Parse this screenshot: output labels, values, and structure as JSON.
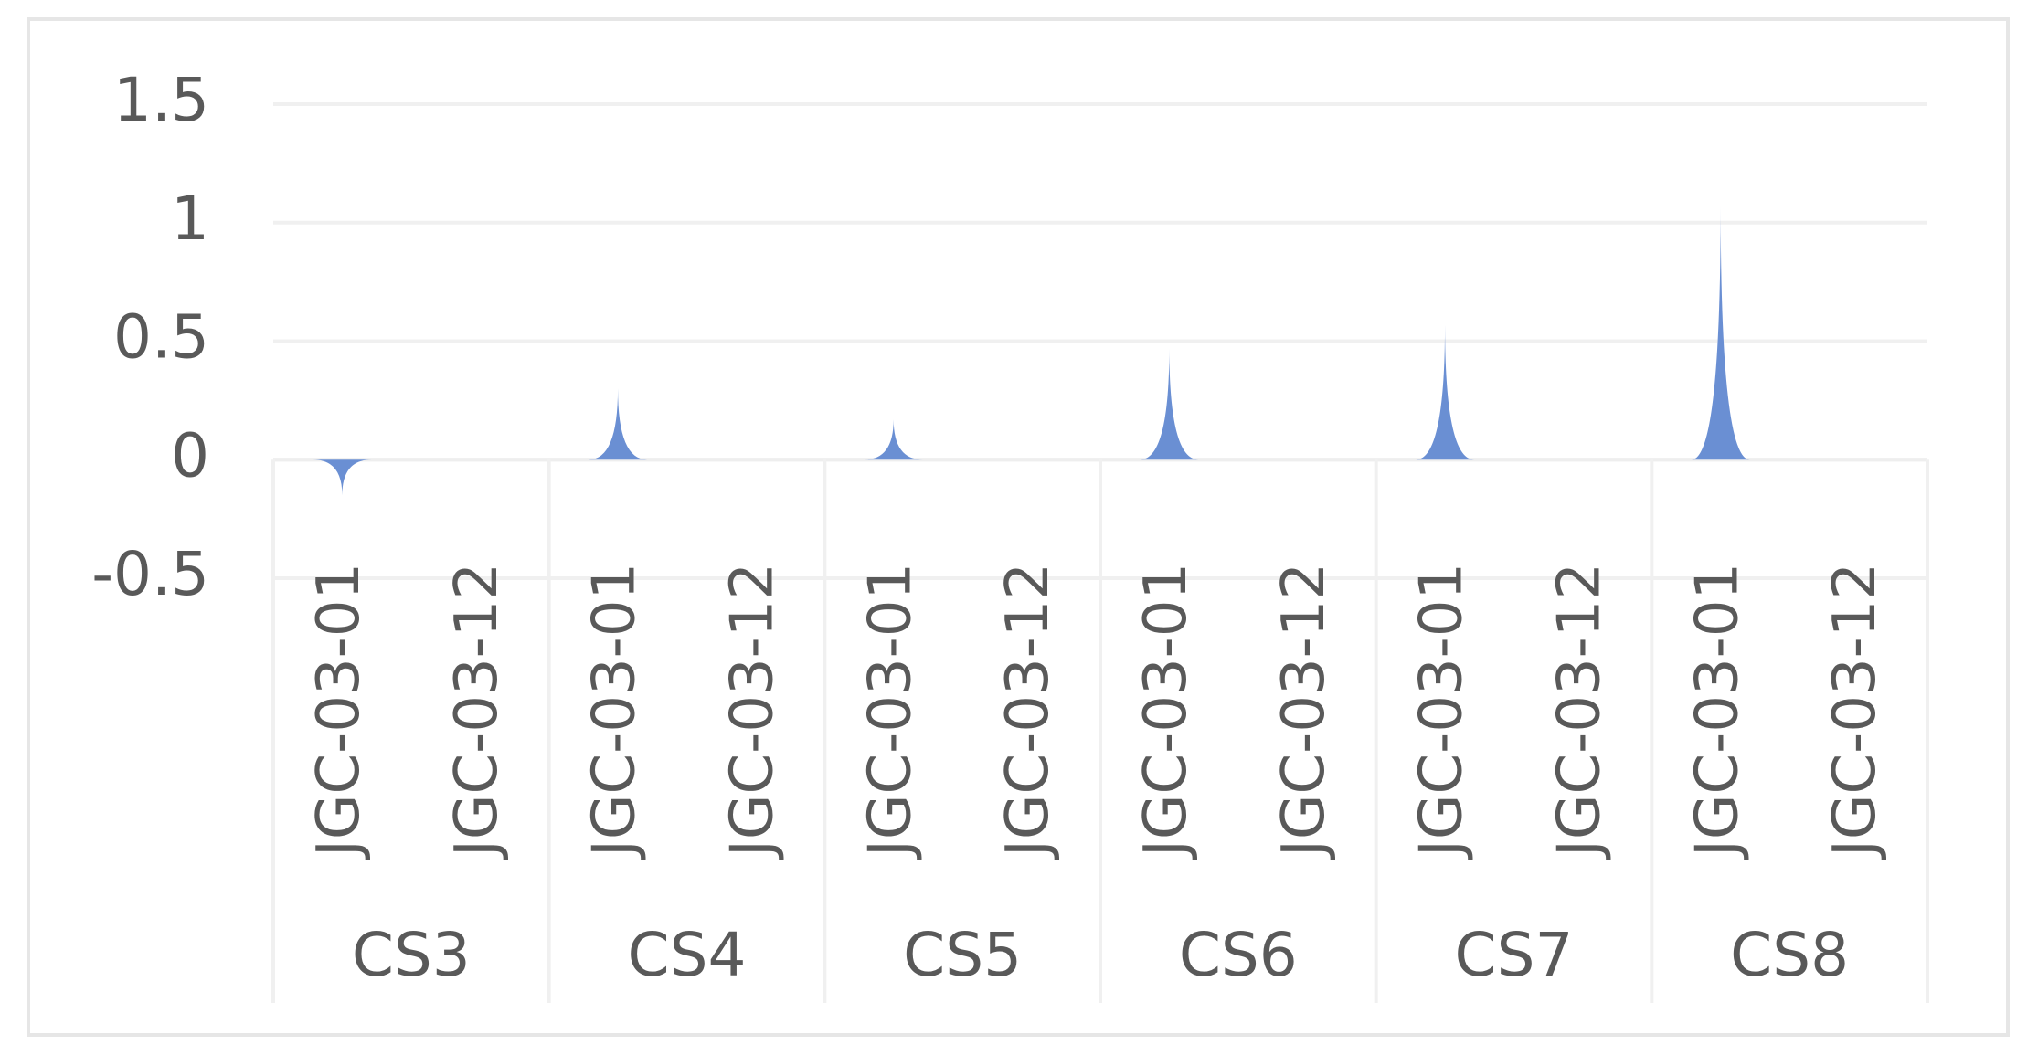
{
  "chart_data": {
    "type": "spike",
    "categories": [
      "JGC-03-01",
      "JGC-03-12",
      "JGC-03-01",
      "JGC-03-12",
      "JGC-03-01",
      "JGC-03-12",
      "JGC-03-01",
      "JGC-03-12",
      "JGC-03-01",
      "JGC-03-12",
      "JGC-03-01",
      "JGC-03-12"
    ],
    "groups": [
      "CS3",
      "CS4",
      "CS5",
      "CS6",
      "CS7",
      "CS8"
    ],
    "values": [
      -0.15,
      null,
      0.3,
      null,
      0.17,
      null,
      0.47,
      null,
      0.57,
      null,
      1.07,
      null
    ],
    "color": "#6a8fd3",
    "ylim": [
      -0.5,
      1.5
    ],
    "yticks": [
      -0.5,
      0,
      0.5,
      1,
      1.5
    ],
    "grid": true
  }
}
